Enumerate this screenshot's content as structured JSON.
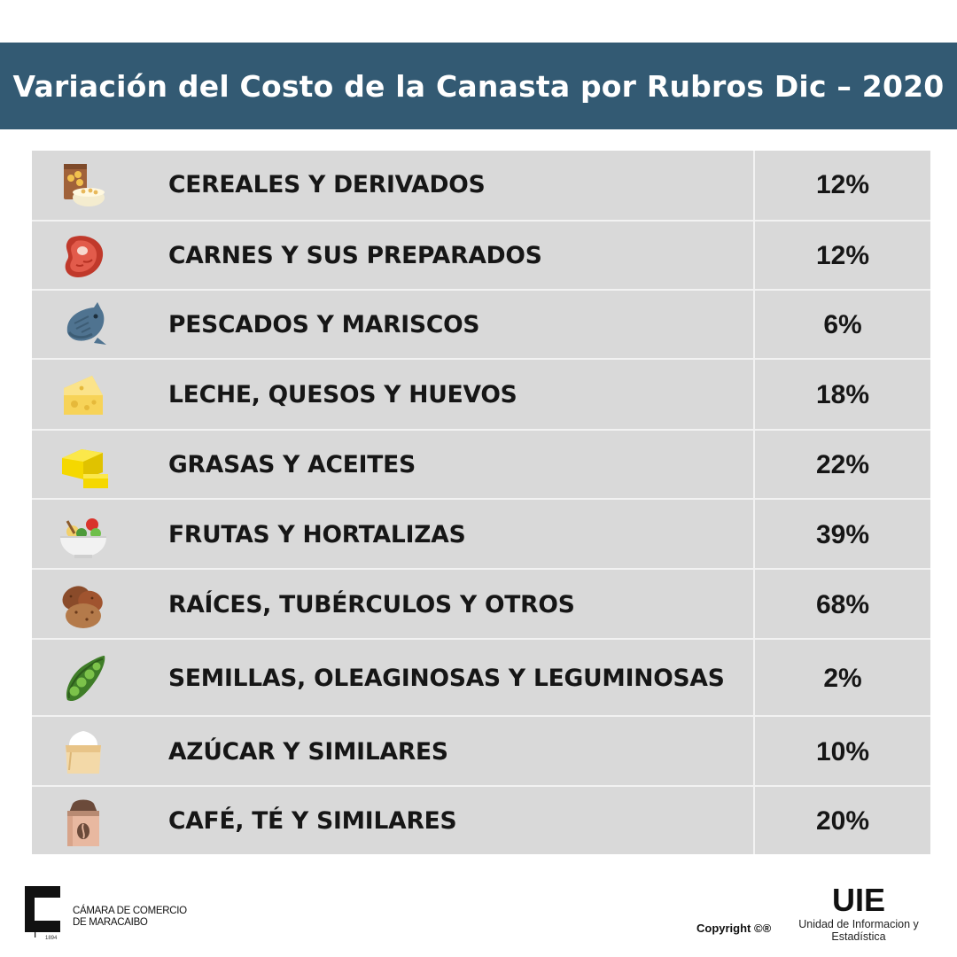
{
  "title": "Variación del Costo de la Canasta por Rubros Dic – 2020",
  "chart_data": {
    "type": "table",
    "title": "Variación del Costo de la Canasta por Rubros Dic – 2020",
    "columns": [
      "",
      "",
      ""
    ],
    "rows": [
      {
        "icon": "cereal-icon",
        "label": "CEREALES Y DERIVADOS",
        "value_text": "12%",
        "value": 12
      },
      {
        "icon": "meat-icon",
        "label": "CARNES Y SUS PREPARADOS",
        "value_text": "12%",
        "value": 12
      },
      {
        "icon": "fish-icon",
        "label": "PESCADOS Y MARISCOS",
        "value_text": "6%",
        "value": 6
      },
      {
        "icon": "cheese-icon",
        "label": "LECHE, QUESOS Y HUEVOS",
        "value_text": "18%",
        "value": 18
      },
      {
        "icon": "butter-icon",
        "label": "GRASAS Y ACEITES",
        "value_text": "22%",
        "value": 22
      },
      {
        "icon": "salad-bowl-icon",
        "label": "FRUTAS Y HORTALIZAS",
        "value_text": "39%",
        "value": 39
      },
      {
        "icon": "potato-icon",
        "label": "RAÍCES, TUBÉRCULOS Y OTROS",
        "value_text": "68%",
        "value": 68
      },
      {
        "icon": "peas-icon",
        "label": "SEMILLAS, OLEAGINOSAS Y LEGUMINOSAS",
        "value_text": "2%",
        "value": 2
      },
      {
        "icon": "sugar-sack-icon",
        "label": "AZÚCAR Y SIMILARES",
        "value_text": "10%",
        "value": 10
      },
      {
        "icon": "coffee-bag-icon",
        "label": "CAFÉ, TÉ Y SIMILARES",
        "value_text": "20%",
        "value": 20
      }
    ]
  },
  "footer": {
    "chamber_line1": "CÁMARA DE COMERCIO",
    "chamber_line2": "DE MARACAIBO",
    "chamber_year": "1894",
    "copyright": "Copyright ©®",
    "uie_title": "UIE",
    "uie_line1": "Unidad de Informacion y",
    "uie_line2": "Estadística"
  },
  "colors": {
    "title_bar": "#335a73",
    "table_bg": "#d9d9d9",
    "divider": "#f2f2f2"
  }
}
